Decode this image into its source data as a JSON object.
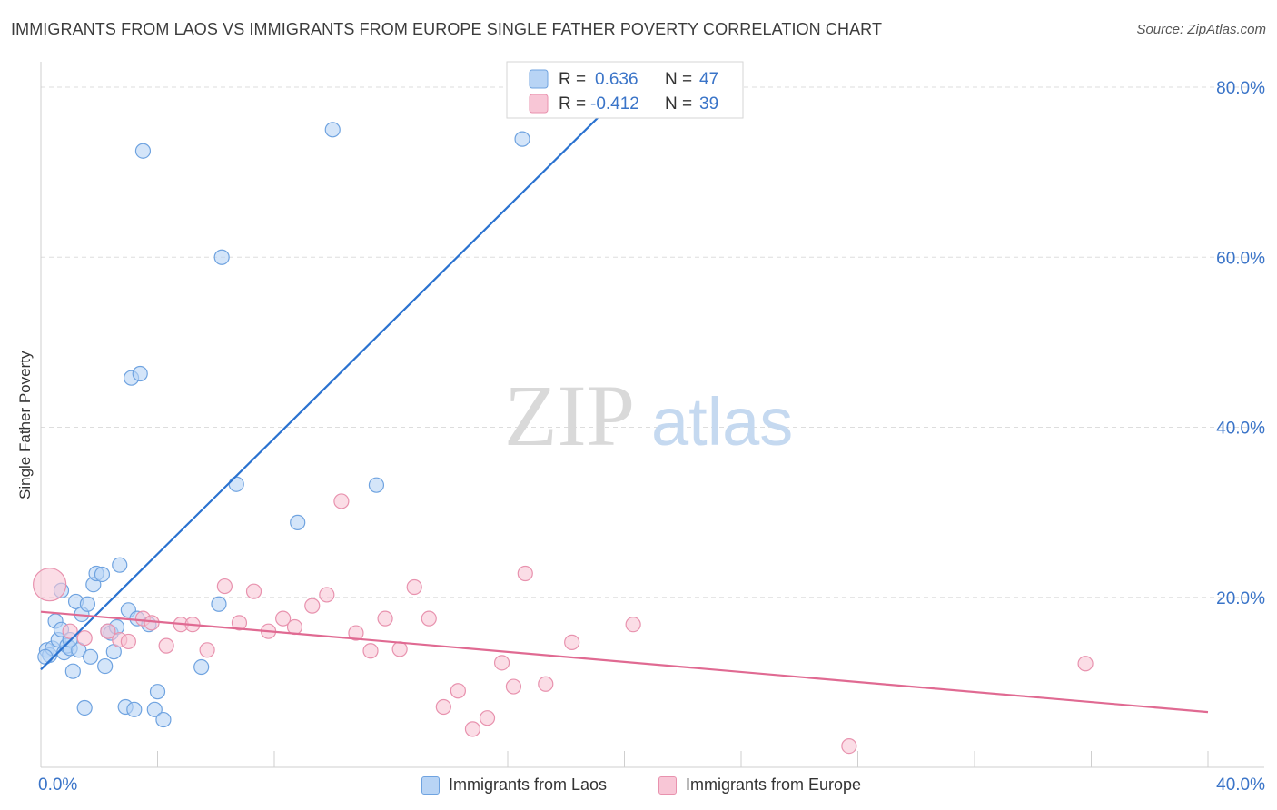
{
  "title": "IMMIGRANTS FROM LAOS VS IMMIGRANTS FROM EUROPE SINGLE FATHER POVERTY CORRELATION CHART",
  "source": "Source: ZipAtlas.com",
  "watermark": {
    "zip": "ZIP",
    "atlas": "atlas"
  },
  "colors": {
    "laos_fill": "#b8d4f5",
    "laos_stroke": "#6fa3e0",
    "laos_line": "#2a72d0",
    "europe_fill": "#f8c6d6",
    "europe_stroke": "#e892ae",
    "europe_line": "#e06a92",
    "axis_label": "#3a74c8",
    "grid": "#dddddd"
  },
  "legend_top": [
    {
      "r_label": "R =",
      "r_value": "0.636",
      "n_label": "N =",
      "n_value": "47"
    },
    {
      "r_label": "R =",
      "r_value": "-0.412",
      "n_label": "N =",
      "n_value": "39"
    }
  ],
  "legend_bottom": [
    "Immigrants from Laos",
    "Immigrants from Europe"
  ],
  "chart_data": {
    "type": "scatter",
    "title": "IMMIGRANTS FROM LAOS VS IMMIGRANTS FROM EUROPE SINGLE FATHER POVERTY CORRELATION CHART",
    "xlabel": "",
    "ylabel": "Single Father Poverty",
    "xlim": [
      0,
      40
    ],
    "ylim": [
      0,
      80
    ],
    "x_tick_labels": [
      "0.0%",
      "40.0%"
    ],
    "y_ticks": [
      20,
      40,
      60,
      80
    ],
    "y_tick_labels": [
      "20.0%",
      "40.0%",
      "60.0%",
      "80.0%"
    ],
    "grid": true,
    "legend_position": "top-center",
    "series": [
      {
        "name": "Immigrants from Laos",
        "r": 0.636,
        "n": 47,
        "trend": {
          "x": [
            0,
            20
          ],
          "y": [
            11.5,
            79.5
          ]
        },
        "points": [
          [
            0.2,
            13.8
          ],
          [
            0.3,
            13.2
          ],
          [
            0.4,
            14.0
          ],
          [
            0.5,
            17.2
          ],
          [
            0.6,
            15.0
          ],
          [
            0.7,
            16.2
          ],
          [
            0.7,
            20.8
          ],
          [
            0.8,
            13.5
          ],
          [
            0.9,
            14.3
          ],
          [
            1.0,
            14.0
          ],
          [
            1.1,
            11.3
          ],
          [
            1.2,
            19.5
          ],
          [
            1.3,
            13.8
          ],
          [
            1.4,
            18.0
          ],
          [
            1.5,
            7.0
          ],
          [
            1.6,
            19.2
          ],
          [
            1.7,
            13.0
          ],
          [
            1.8,
            21.5
          ],
          [
            1.9,
            22.8
          ],
          [
            2.1,
            22.7
          ],
          [
            2.2,
            11.9
          ],
          [
            2.3,
            16.0
          ],
          [
            2.4,
            15.8
          ],
          [
            2.5,
            13.6
          ],
          [
            2.6,
            16.5
          ],
          [
            2.7,
            23.8
          ],
          [
            2.9,
            7.1
          ],
          [
            3.0,
            18.5
          ],
          [
            3.1,
            45.8
          ],
          [
            3.2,
            6.8
          ],
          [
            3.3,
            17.5
          ],
          [
            3.4,
            46.3
          ],
          [
            3.5,
            72.5
          ],
          [
            3.7,
            16.8
          ],
          [
            3.9,
            6.8
          ],
          [
            4.0,
            8.9
          ],
          [
            4.2,
            5.6
          ],
          [
            5.5,
            11.8
          ],
          [
            6.1,
            19.2
          ],
          [
            6.2,
            60.0
          ],
          [
            6.7,
            33.3
          ],
          [
            8.8,
            28.8
          ],
          [
            10.0,
            75.0
          ],
          [
            11.5,
            33.2
          ],
          [
            16.5,
            73.9
          ],
          [
            0.15,
            13.0
          ],
          [
            1.0,
            15.0
          ]
        ]
      },
      {
        "name": "Immigrants from Europe",
        "r": -0.412,
        "n": 39,
        "trend": {
          "x": [
            0,
            40
          ],
          "y": [
            18.3,
            6.5
          ]
        },
        "points": [
          [
            0.3,
            21.5
          ],
          [
            1.0,
            16.0
          ],
          [
            1.5,
            15.2
          ],
          [
            2.3,
            16.0
          ],
          [
            2.7,
            15.0
          ],
          [
            3.0,
            14.8
          ],
          [
            3.5,
            17.5
          ],
          [
            3.8,
            17.0
          ],
          [
            4.3,
            14.3
          ],
          [
            4.8,
            16.8
          ],
          [
            5.2,
            16.8
          ],
          [
            5.7,
            13.8
          ],
          [
            6.3,
            21.3
          ],
          [
            6.8,
            17.0
          ],
          [
            7.3,
            20.7
          ],
          [
            7.8,
            16.0
          ],
          [
            8.3,
            17.5
          ],
          [
            8.7,
            16.5
          ],
          [
            9.3,
            19.0
          ],
          [
            9.8,
            20.3
          ],
          [
            10.3,
            31.3
          ],
          [
            10.8,
            15.8
          ],
          [
            11.3,
            13.7
          ],
          [
            11.8,
            17.5
          ],
          [
            12.3,
            13.9
          ],
          [
            12.8,
            21.2
          ],
          [
            13.3,
            17.5
          ],
          [
            13.8,
            7.1
          ],
          [
            14.3,
            9.0
          ],
          [
            14.8,
            4.5
          ],
          [
            15.3,
            5.8
          ],
          [
            15.8,
            12.3
          ],
          [
            16.2,
            9.5
          ],
          [
            16.6,
            22.8
          ],
          [
            17.3,
            9.8
          ],
          [
            18.2,
            14.7
          ],
          [
            20.3,
            16.8
          ],
          [
            27.7,
            2.5
          ],
          [
            35.8,
            12.2
          ]
        ]
      }
    ]
  }
}
